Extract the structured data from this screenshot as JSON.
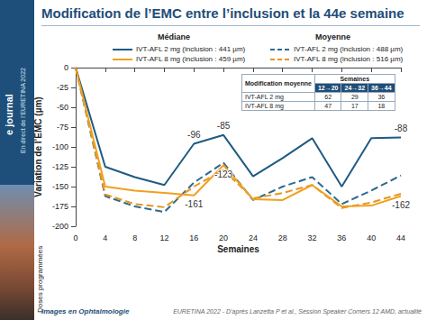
{
  "page": {
    "sidebar": {
      "brand": "e journal",
      "subtitle": "En direct de l’EURETINA 2022"
    },
    "doses_label": "Doses programmées",
    "footer": {
      "left": "Images en Ophtalmologie",
      "right": "EURETINA 2022 - D’après Lanzetta P et al., Session Speaker Corners 12 AMD, actualité"
    }
  },
  "chart_data": {
    "type": "line",
    "title": "Modification de l’EMC entre l’inclusion et la 44e semaine",
    "xlabel": "Semaines",
    "ylabel": "Variation de l’EMC (µm)",
    "x": [
      0,
      4,
      8,
      12,
      16,
      20,
      24,
      28,
      32,
      36,
      40,
      44
    ],
    "xlim": [
      0,
      44
    ],
    "xticks": [
      0,
      4,
      8,
      12,
      16,
      20,
      24,
      28,
      32,
      36,
      40,
      44
    ],
    "ylim": [
      -200,
      0
    ],
    "yticks": [
      -200,
      -175,
      -150,
      -125,
      -100,
      -75,
      -50,
      -25,
      0
    ],
    "grid": false,
    "legend_titles": [
      "Médiane",
      "Moyenne"
    ],
    "series": [
      {
        "name": "IVT-AFL 2 mg (inclusion : 441 µm)",
        "color": "#1d5b82",
        "line_style": "solid",
        "values": [
          0,
          -125,
          -138,
          -148,
          -96,
          -85,
          -137,
          -114,
          -89,
          -150,
          -89,
          -88
        ],
        "value_labels": [
          null,
          null,
          null,
          null,
          "-96",
          "-85",
          null,
          null,
          null,
          null,
          null,
          "-88"
        ]
      },
      {
        "name": "IVT-AFL 8 mg (inclusion : 459 µm)",
        "color": "#f0a020",
        "line_style": "solid",
        "values": [
          0,
          -150,
          -155,
          -158,
          -161,
          -123,
          -166,
          -167,
          -148,
          -175,
          -174,
          -162
        ],
        "value_labels": [
          null,
          null,
          null,
          null,
          "-161",
          "-123",
          null,
          null,
          null,
          null,
          null,
          "-162"
        ]
      },
      {
        "name": "IVT-AFL 2 mg (inclusion : 488 µm)",
        "color": "#2c6a8f",
        "line_style": "dashed",
        "values": [
          0,
          -162,
          -175,
          -182,
          -145,
          -120,
          -167,
          -150,
          -138,
          -172,
          -155,
          -136
        ]
      },
      {
        "name": "IVT-AFL 8 mg (inclusion : 516 µm)",
        "color": "#e8951a",
        "line_style": "dashed",
        "values": [
          0,
          -160,
          -172,
          -176,
          -150,
          -129,
          -165,
          -158,
          -148,
          -177,
          -170,
          -159
        ]
      }
    ],
    "table": {
      "title": "Modification moyenne",
      "header": "Semaines",
      "columns": [
        "12→20",
        "24→32",
        "36→44"
      ],
      "rows": [
        {
          "label": "IVT-AFL 2 mg",
          "values": [
            62,
            29,
            36
          ]
        },
        {
          "label": "IVT-AFL 8 mg",
          "values": [
            47,
            17,
            18
          ]
        }
      ]
    }
  }
}
